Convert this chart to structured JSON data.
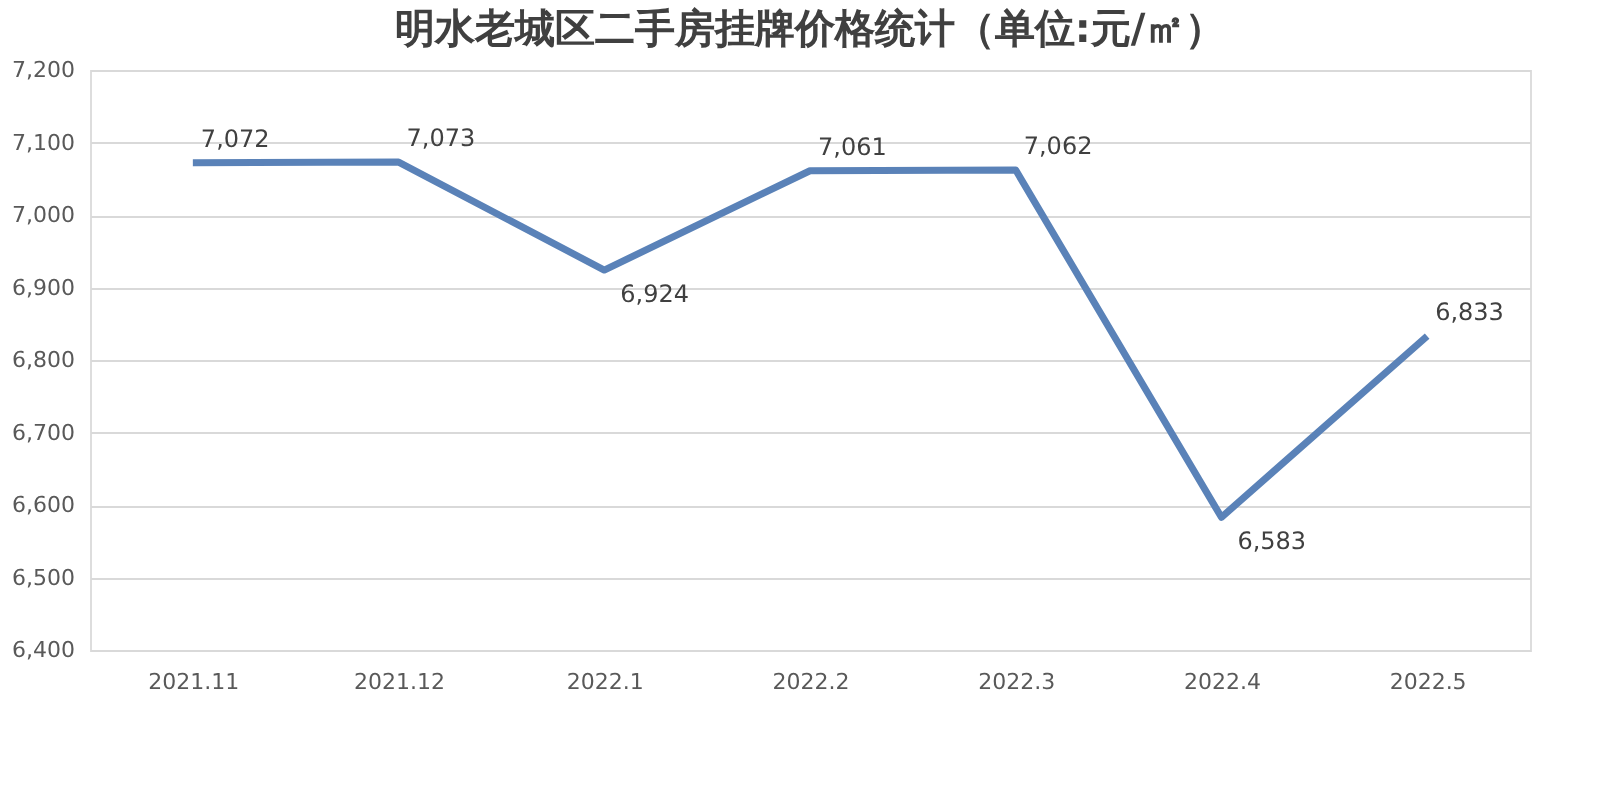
{
  "chart_data": {
    "type": "line",
    "title": "明水老城区二手房挂牌价格统计（单位:元/㎡）",
    "categories": [
      "2021.11",
      "2021.12",
      "2022.1",
      "2022.2",
      "2022.3",
      "2022.4",
      "2022.5"
    ],
    "series": [
      {
        "color": "#5a82b8",
        "values": [
          7072,
          7073,
          6924,
          7061,
          7062,
          6583,
          6833
        ],
        "value_labels": [
          "7,072",
          "7,073",
          "6,924",
          "7,061",
          "7,062",
          "6,583",
          "6,833"
        ]
      }
    ],
    "ylim": [
      6400,
      7200
    ],
    "yticks": [
      {
        "value": 6400,
        "label": "6,400"
      },
      {
        "value": 6500,
        "label": "6,500"
      },
      {
        "value": 6600,
        "label": "6,600"
      },
      {
        "value": 6700,
        "label": "6,700"
      },
      {
        "value": 6800,
        "label": "6,800"
      },
      {
        "value": 6900,
        "label": "6,900"
      },
      {
        "value": 7000,
        "label": "7,000"
      },
      {
        "value": 7100,
        "label": "7,100"
      },
      {
        "value": 7200,
        "label": "7,200"
      }
    ],
    "grid": "y",
    "marker": "none",
    "line_style": "solid",
    "legend": false
  }
}
